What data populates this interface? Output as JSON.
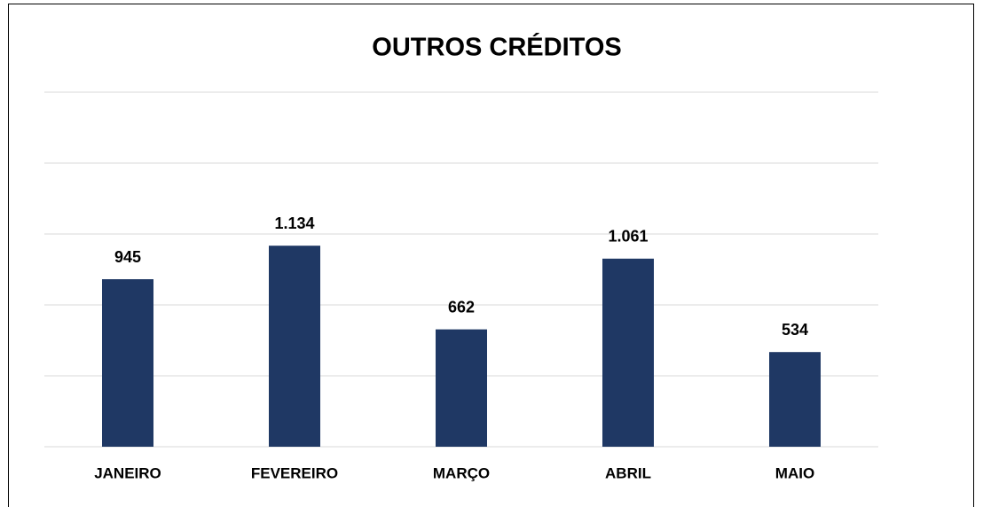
{
  "chart_data": {
    "type": "bar",
    "title": "OUTROS CRÉDITOS",
    "categories": [
      "JANEIRO",
      "FEVEREIRO",
      "MARÇO",
      "ABRIL",
      "MAIO"
    ],
    "values": [
      945,
      1134,
      662,
      1061,
      534
    ],
    "value_labels": [
      "945",
      "1.134",
      "662",
      "1.061",
      "534"
    ],
    "color": "#1f3864",
    "ylim": [
      0,
      2000
    ],
    "yticks": [
      0,
      400,
      800,
      1200,
      1600,
      2000
    ],
    "grid": true
  }
}
